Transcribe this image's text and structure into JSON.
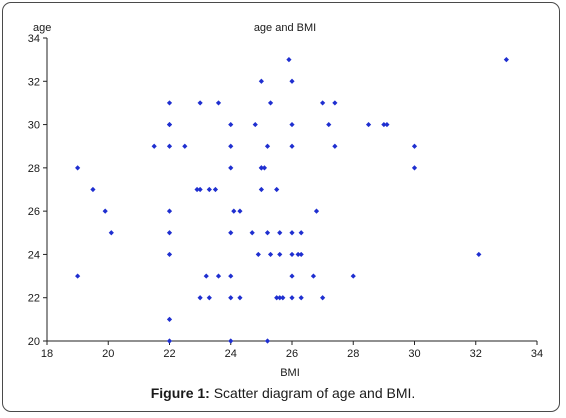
{
  "chart_data": {
    "type": "scatter",
    "title": "age and BMI",
    "xlabel": "BMI",
    "ylabel": "age",
    "xlim": [
      18,
      34
    ],
    "ylim": [
      20,
      34
    ],
    "xticks": [
      18,
      20,
      22,
      24,
      26,
      28,
      30,
      32,
      34
    ],
    "yticks": [
      20,
      22,
      24,
      26,
      28,
      30,
      32,
      34
    ],
    "grid": false,
    "marker_color": "#1f2fd0",
    "points": [
      {
        "x": 19.0,
        "y": 28
      },
      {
        "x": 19.0,
        "y": 23
      },
      {
        "x": 19.5,
        "y": 27
      },
      {
        "x": 19.9,
        "y": 26
      },
      {
        "x": 20.1,
        "y": 25
      },
      {
        "x": 21.5,
        "y": 29
      },
      {
        "x": 22.0,
        "y": 31
      },
      {
        "x": 22.0,
        "y": 30
      },
      {
        "x": 22.0,
        "y": 30
      },
      {
        "x": 22.0,
        "y": 26
      },
      {
        "x": 22.0,
        "y": 25
      },
      {
        "x": 22.0,
        "y": 24
      },
      {
        "x": 22.0,
        "y": 21
      },
      {
        "x": 22.0,
        "y": 20
      },
      {
        "x": 22.0,
        "y": 29
      },
      {
        "x": 22.5,
        "y": 29
      },
      {
        "x": 22.9,
        "y": 27
      },
      {
        "x": 23.0,
        "y": 27
      },
      {
        "x": 23.0,
        "y": 31
      },
      {
        "x": 23.0,
        "y": 22
      },
      {
        "x": 23.2,
        "y": 23
      },
      {
        "x": 23.3,
        "y": 22
      },
      {
        "x": 23.3,
        "y": 27
      },
      {
        "x": 23.5,
        "y": 27
      },
      {
        "x": 23.6,
        "y": 31
      },
      {
        "x": 23.6,
        "y": 23
      },
      {
        "x": 24.0,
        "y": 30
      },
      {
        "x": 24.0,
        "y": 29
      },
      {
        "x": 24.0,
        "y": 28
      },
      {
        "x": 24.0,
        "y": 25
      },
      {
        "x": 24.0,
        "y": 23
      },
      {
        "x": 24.0,
        "y": 22
      },
      {
        "x": 24.0,
        "y": 20
      },
      {
        "x": 24.1,
        "y": 26
      },
      {
        "x": 24.3,
        "y": 26
      },
      {
        "x": 24.3,
        "y": 22
      },
      {
        "x": 24.7,
        "y": 25
      },
      {
        "x": 24.8,
        "y": 30
      },
      {
        "x": 25.0,
        "y": 32
      },
      {
        "x": 25.0,
        "y": 28
      },
      {
        "x": 25.0,
        "y": 27
      },
      {
        "x": 25.1,
        "y": 28
      },
      {
        "x": 24.9,
        "y": 24
      },
      {
        "x": 25.0,
        "y": 28
      },
      {
        "x": 25.2,
        "y": 29
      },
      {
        "x": 25.2,
        "y": 25
      },
      {
        "x": 25.3,
        "y": 31
      },
      {
        "x": 25.3,
        "y": 24
      },
      {
        "x": 25.2,
        "y": 20
      },
      {
        "x": 25.5,
        "y": 27
      },
      {
        "x": 25.6,
        "y": 25
      },
      {
        "x": 25.5,
        "y": 22
      },
      {
        "x": 25.6,
        "y": 22
      },
      {
        "x": 25.6,
        "y": 24
      },
      {
        "x": 25.7,
        "y": 22
      },
      {
        "x": 25.9,
        "y": 33
      },
      {
        "x": 26.0,
        "y": 32
      },
      {
        "x": 26.0,
        "y": 30
      },
      {
        "x": 26.0,
        "y": 29
      },
      {
        "x": 26.0,
        "y": 25
      },
      {
        "x": 26.0,
        "y": 24
      },
      {
        "x": 26.0,
        "y": 23
      },
      {
        "x": 26.0,
        "y": 22
      },
      {
        "x": 26.2,
        "y": 24
      },
      {
        "x": 26.3,
        "y": 24
      },
      {
        "x": 26.3,
        "y": 25
      },
      {
        "x": 26.3,
        "y": 22
      },
      {
        "x": 26.7,
        "y": 23
      },
      {
        "x": 26.8,
        "y": 26
      },
      {
        "x": 27.0,
        "y": 31
      },
      {
        "x": 27.0,
        "y": 22
      },
      {
        "x": 27.2,
        "y": 30
      },
      {
        "x": 27.4,
        "y": 31
      },
      {
        "x": 27.4,
        "y": 29
      },
      {
        "x": 28.0,
        "y": 23
      },
      {
        "x": 28.5,
        "y": 30
      },
      {
        "x": 29.0,
        "y": 30
      },
      {
        "x": 29.1,
        "y": 30
      },
      {
        "x": 30.0,
        "y": 29
      },
      {
        "x": 30.0,
        "y": 28
      },
      {
        "x": 32.1,
        "y": 24
      },
      {
        "x": 33.0,
        "y": 33
      }
    ]
  },
  "caption": {
    "label": "Figure 1:",
    "text": " Scatter diagram of age and BMI."
  }
}
